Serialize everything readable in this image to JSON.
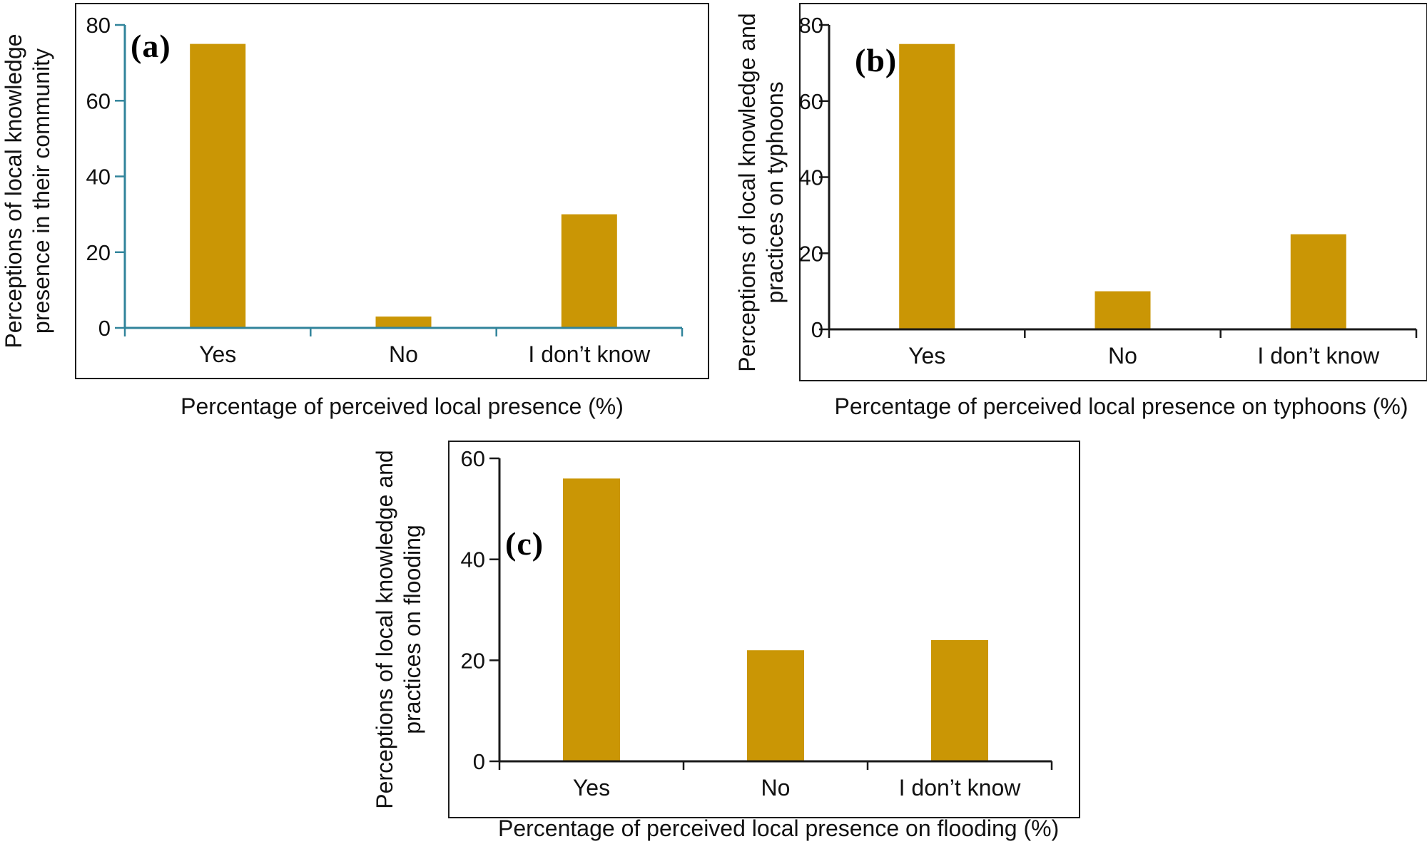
{
  "page": {
    "background": "#ffffff"
  },
  "colors": {
    "bar_fill": "#CA9605",
    "axis_teal": "#31849B",
    "axis_dark": "#1a1a1a",
    "text": "#111111",
    "panel_border": "#1c1c1c"
  },
  "chart_data": [
    {
      "panel": "a",
      "panel_label": "(a)",
      "type": "bar",
      "categories": [
        "Yes",
        "No",
        "I don’t know"
      ],
      "values": [
        75,
        3,
        30
      ],
      "xlabel": "Percentage of perceived local presence (%)",
      "ylabel": "Perceptions of local knowledge presence in their community",
      "ylabel_lines": [
        "Perceptions of local knowledge",
        "presence in their community"
      ],
      "ylim": [
        0,
        80
      ],
      "yticks": [
        0,
        20,
        40,
        60,
        80
      ],
      "grid": false,
      "legend": "none",
      "axis_color": "#31849B",
      "bar_color": "#CA9605"
    },
    {
      "panel": "b",
      "panel_label": "(b)",
      "type": "bar",
      "categories": [
        "Yes",
        "No",
        "I don’t know"
      ],
      "values": [
        75,
        10,
        25
      ],
      "xlabel": "Percentage of perceived local presence on typhoons (%)",
      "ylabel": "Perceptions of local knowledge and practices on typhoons",
      "ylabel_lines": [
        "Perceptions of local knowledge and",
        "practices on typhoons"
      ],
      "ylim": [
        0,
        80
      ],
      "yticks": [
        0,
        20,
        40,
        60,
        80
      ],
      "grid": false,
      "legend": "none",
      "axis_color": "#1a1a1a",
      "bar_color": "#CA9605"
    },
    {
      "panel": "c",
      "panel_label": "(c)",
      "type": "bar",
      "categories": [
        "Yes",
        "No",
        "I don’t know"
      ],
      "values": [
        56,
        22,
        24
      ],
      "xlabel": "Percentage of perceived local presence on flooding (%)",
      "ylabel": "Perceptions of local knowledge and practices on flooding",
      "ylabel_lines": [
        "Perceptions of local knowledge and",
        "practices on flooding"
      ],
      "ylim": [
        0,
        60
      ],
      "yticks": [
        0,
        20,
        40,
        60
      ],
      "grid": false,
      "legend": "none",
      "axis_color": "#1a1a1a",
      "bar_color": "#CA9605"
    }
  ]
}
